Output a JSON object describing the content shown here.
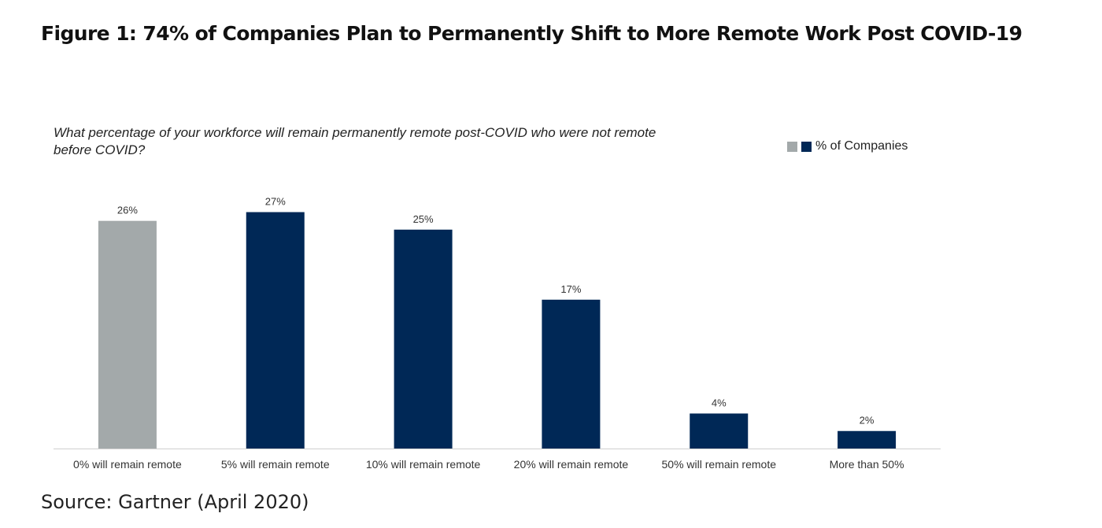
{
  "title": "Figure 1: 74% of Companies Plan to Permanently Shift to More Remote Work Post COVID-19",
  "source": "Source: Gartner (April 2020)",
  "chart_data": {
    "type": "bar",
    "subtitle": "What percentage of your workforce will remain permanently remote post-COVID who were not remote before COVID?",
    "categories": [
      "0% will remain remote",
      "5% will remain remote",
      "10% will remain remote",
      "20% will remain remote",
      "50% will remain remote",
      "More than 50%"
    ],
    "series": [
      {
        "name": "% of Companies",
        "values": [
          26,
          27,
          25,
          17,
          4,
          2
        ],
        "labels": [
          "26%",
          "27%",
          "25%",
          "17%",
          "4%",
          "2%"
        ],
        "colors": [
          "#a3a9aa",
          "#002856",
          "#002856",
          "#002856",
          "#002856",
          "#002856"
        ]
      }
    ],
    "ylim": [
      0,
      27.5
    ],
    "grid": false,
    "legend_position": "top-right",
    "legend_colors": [
      "#a3a9aa",
      "#002856"
    ]
  }
}
